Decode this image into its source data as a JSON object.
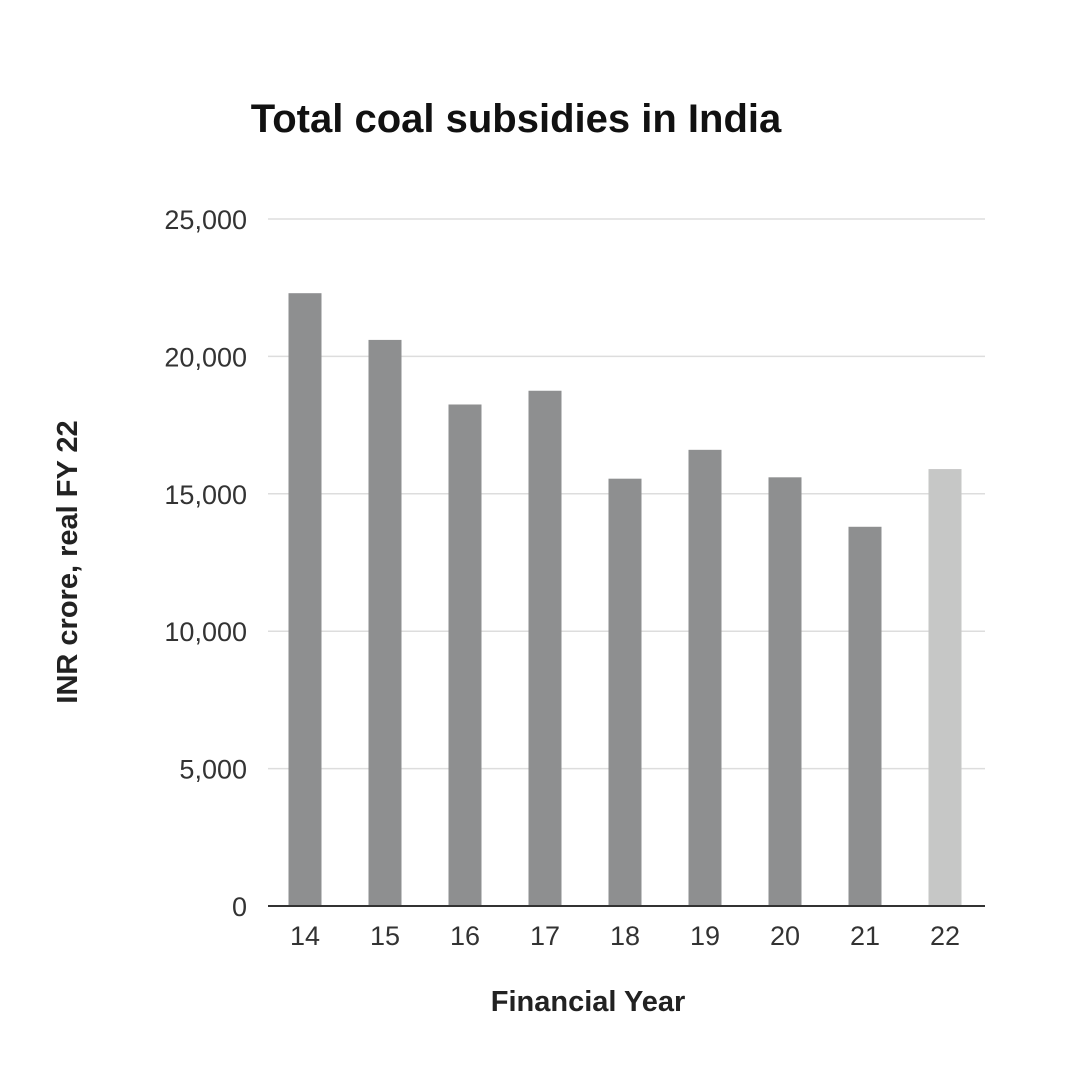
{
  "chart_data": {
    "type": "bar",
    "title": "Total coal subsidies in India",
    "xlabel": "Financial Year",
    "ylabel": "INR crore, real FY 22",
    "categories": [
      "14",
      "15",
      "16",
      "17",
      "18",
      "19",
      "20",
      "21",
      "22"
    ],
    "values": [
      22300,
      20600,
      18250,
      18750,
      15550,
      16600,
      15600,
      13800,
      15900
    ],
    "ylim": [
      0,
      25000
    ],
    "yticks": [
      0,
      5000,
      10000,
      15000,
      20000,
      25000
    ],
    "ytick_labels": [
      "0",
      "5,000",
      "10,000",
      "15,000",
      "20,000",
      "25,000"
    ],
    "grid": true,
    "colors": {
      "bar": "#8e8f90",
      "highlight_bar": "#c6c7c6",
      "gridline": "#dddddd",
      "baseline": "#333333"
    },
    "highlight_category": "22"
  }
}
